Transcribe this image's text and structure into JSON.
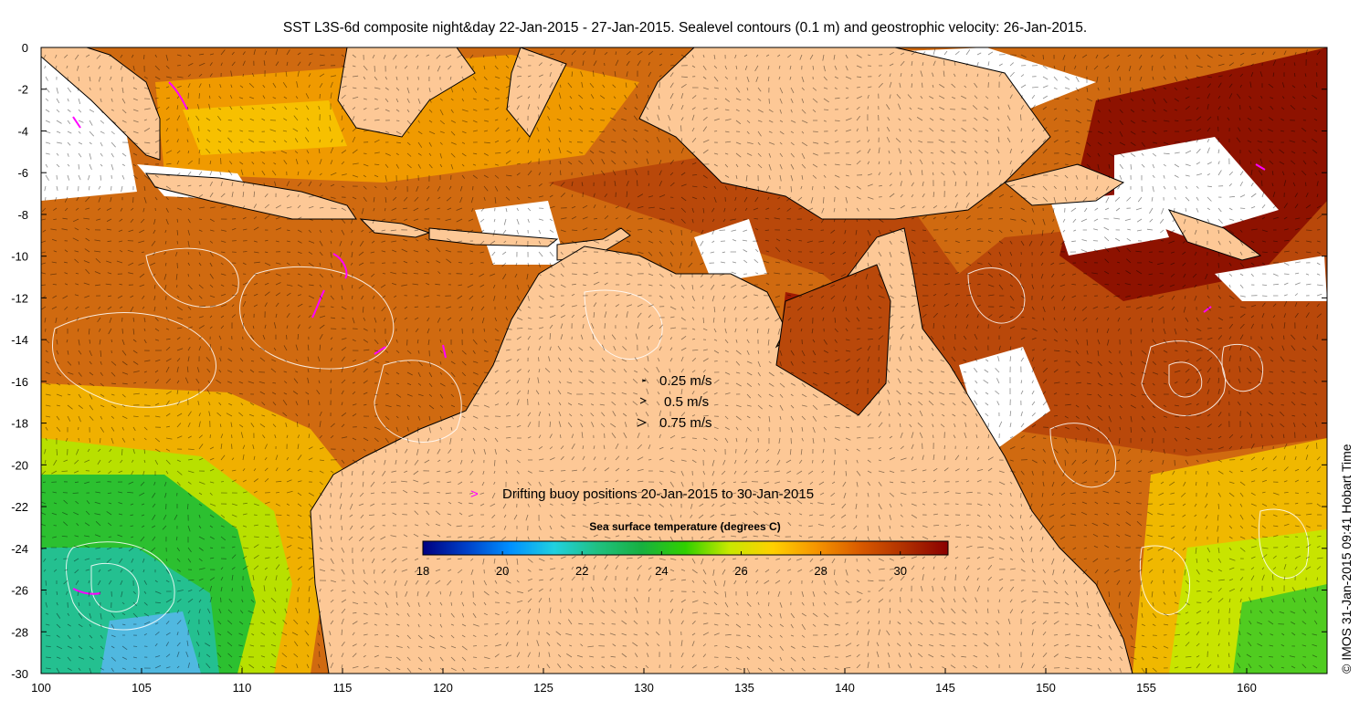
{
  "title": "SST L3S-6d composite night&day 22-Jan-2015 - 27-Jan-2015. Sealevel contours (0.1 m) and geostrophic velocity: 26-Jan-2015.",
  "credit": "© IMOS 31-Jan-2015 09:41 Hobart Time",
  "axes": {
    "lon_range": [
      100,
      164
    ],
    "lat_range": [
      -30,
      0
    ],
    "x_ticks": [
      "100",
      "105",
      "110",
      "115",
      "120",
      "125",
      "130",
      "135",
      "140",
      "145",
      "150",
      "155",
      "160"
    ],
    "y_ticks": [
      "0",
      "-2",
      "-4",
      "-6",
      "-8",
      "-10",
      "-12",
      "-14",
      "-16",
      "-18",
      "-20",
      "-22",
      "-24",
      "-26",
      "-28",
      "-30"
    ]
  },
  "velocity_legend": {
    "items": [
      {
        "label": "0.25 m/s",
        "speed": 0.25
      },
      {
        "label": "0.5 m/s",
        "speed": 0.5
      },
      {
        "label": "0.75 m/s",
        "speed": 0.75
      }
    ]
  },
  "buoy_legend": {
    "symbol": ">",
    "label": "Drifting buoy positions 20-Jan-2015 to 30-Jan-2015",
    "color": "#ff00ff"
  },
  "colorbar": {
    "title": "Sea surface temperature (degrees C)",
    "min": 18,
    "max": 31.2,
    "ticks": [
      "18",
      "20",
      "22",
      "24",
      "26",
      "28",
      "30"
    ],
    "colormap": [
      "#000080",
      "#0040c8",
      "#0090ff",
      "#20d0e0",
      "#20c080",
      "#18b040",
      "#30d000",
      "#c8e800",
      "#ffd000",
      "#f59400",
      "#d85a00",
      "#b03000",
      "#8a0000"
    ]
  },
  "colors": {
    "land": "#fdc896",
    "cloud_gaps": "#ffffff",
    "coastline": "#000000",
    "contours": "#ffffff"
  }
}
